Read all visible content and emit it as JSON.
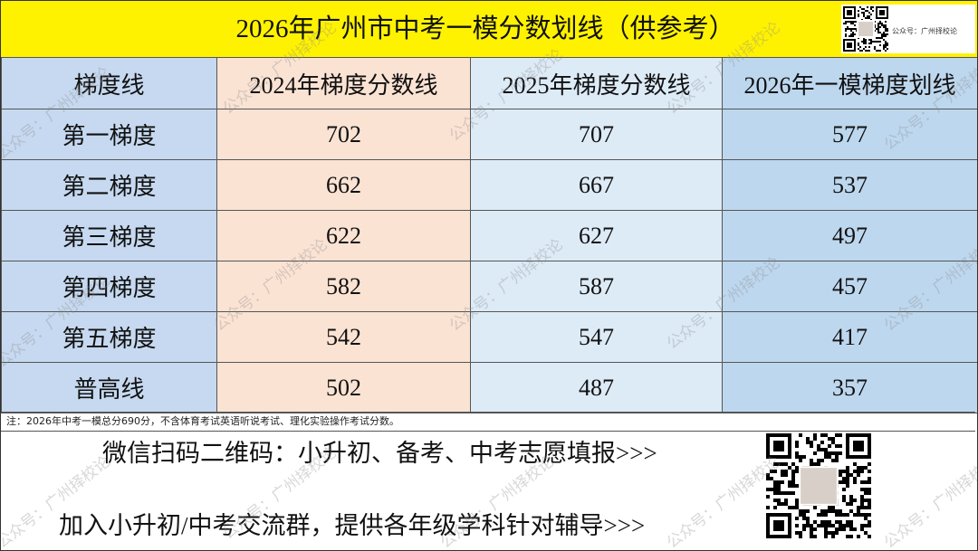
{
  "header": {
    "title": "2026年广州市中考一模分数划线（供参考）",
    "qr_caption": "公众号：广州择校论"
  },
  "table": {
    "columns": [
      "梯度线",
      "2024年梯度分数线",
      "2025年梯度分数线",
      "2026年一模梯度划线"
    ],
    "rows": [
      [
        "第一梯度",
        702,
        707,
        577
      ],
      [
        "第二梯度",
        662,
        667,
        537
      ],
      [
        "第三梯度",
        622,
        627,
        497
      ],
      [
        "第四梯度",
        582,
        587,
        457
      ],
      [
        "第五梯度",
        542,
        547,
        417
      ],
      [
        "普高线",
        502,
        487,
        357
      ]
    ]
  },
  "note": "注：2026年中考一模总分690分，不含体育考试英语听说考试、理化实验操作考试分数。",
  "footer": {
    "lines": [
      "微信扫码二维码：小升初、备考、中考志愿填报>>>",
      "加入小升初/中考交流群，提供各年级学科针对辅导>>>"
    ]
  },
  "watermark": "公众号：广州择校论"
}
